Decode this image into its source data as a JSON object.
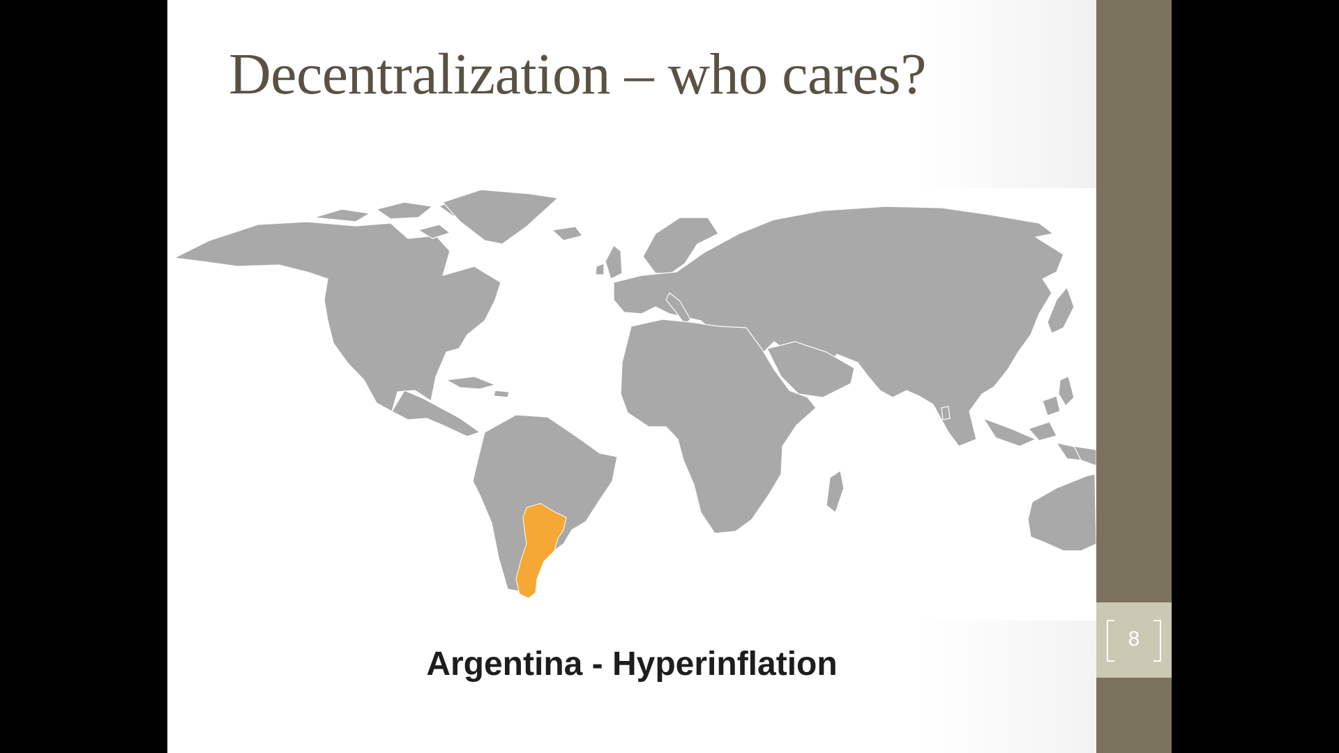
{
  "slide": {
    "title": "Decentralization – who cares?",
    "caption": "Argentina - Hyperinflation",
    "page_number": "8"
  },
  "map": {
    "highlighted_country": "Argentina",
    "land_color": "#a9a9a9",
    "border_color": "#ffffff",
    "highlight_color": "#f5a833"
  },
  "theme": {
    "title_color": "#5a5144",
    "panel_color": "#7b725d",
    "page_box_color": "#cbc8b3"
  }
}
